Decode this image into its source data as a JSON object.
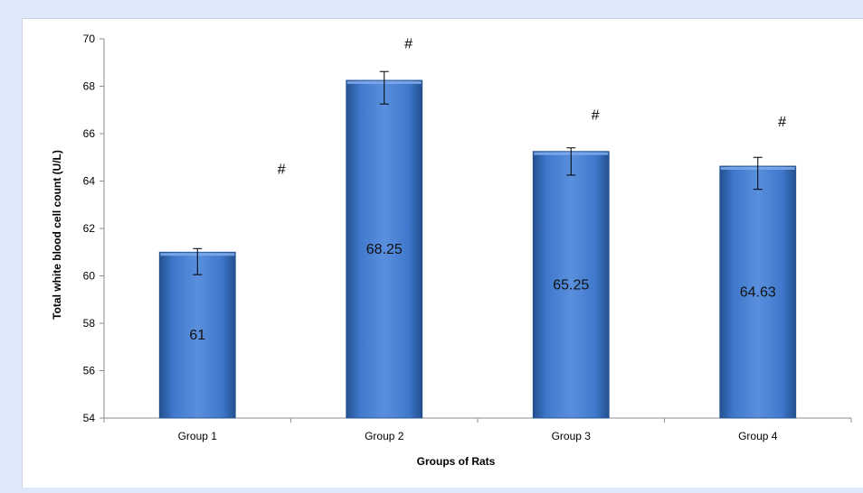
{
  "chart_data": {
    "type": "bar",
    "categories": [
      "Group 1",
      "Group 2",
      "Group 3",
      "Group 4"
    ],
    "values": [
      61,
      68.25,
      65.25,
      64.63
    ],
    "value_labels": [
      "61",
      "68.25",
      "65.25",
      "64.63"
    ],
    "error_low": [
      60.05,
      67.25,
      64.25,
      63.65
    ],
    "error_high": [
      61.15,
      68.62,
      65.4,
      65.0
    ],
    "annotations": [
      {
        "category_index": 0,
        "text": "#",
        "y_level": 64.3
      },
      {
        "category_index": 1,
        "text": "#",
        "y_level": 69.6
      },
      {
        "category_index": 2,
        "text": "#",
        "y_level": 66.6
      },
      {
        "category_index": 3,
        "text": "#",
        "y_level": 66.3
      }
    ],
    "xlabel": "Groups of Rats",
    "ylabel": "Total white blood cell count  (U/L)",
    "ylim": [
      54,
      70
    ],
    "yticks": [
      54,
      56,
      58,
      60,
      62,
      64,
      66,
      68,
      70
    ],
    "grid": false,
    "colors": {
      "bar": "#3d75c9",
      "bar_dark": "#24508f",
      "axis": "#8c8c8c",
      "background": "#dde8fb"
    }
  }
}
